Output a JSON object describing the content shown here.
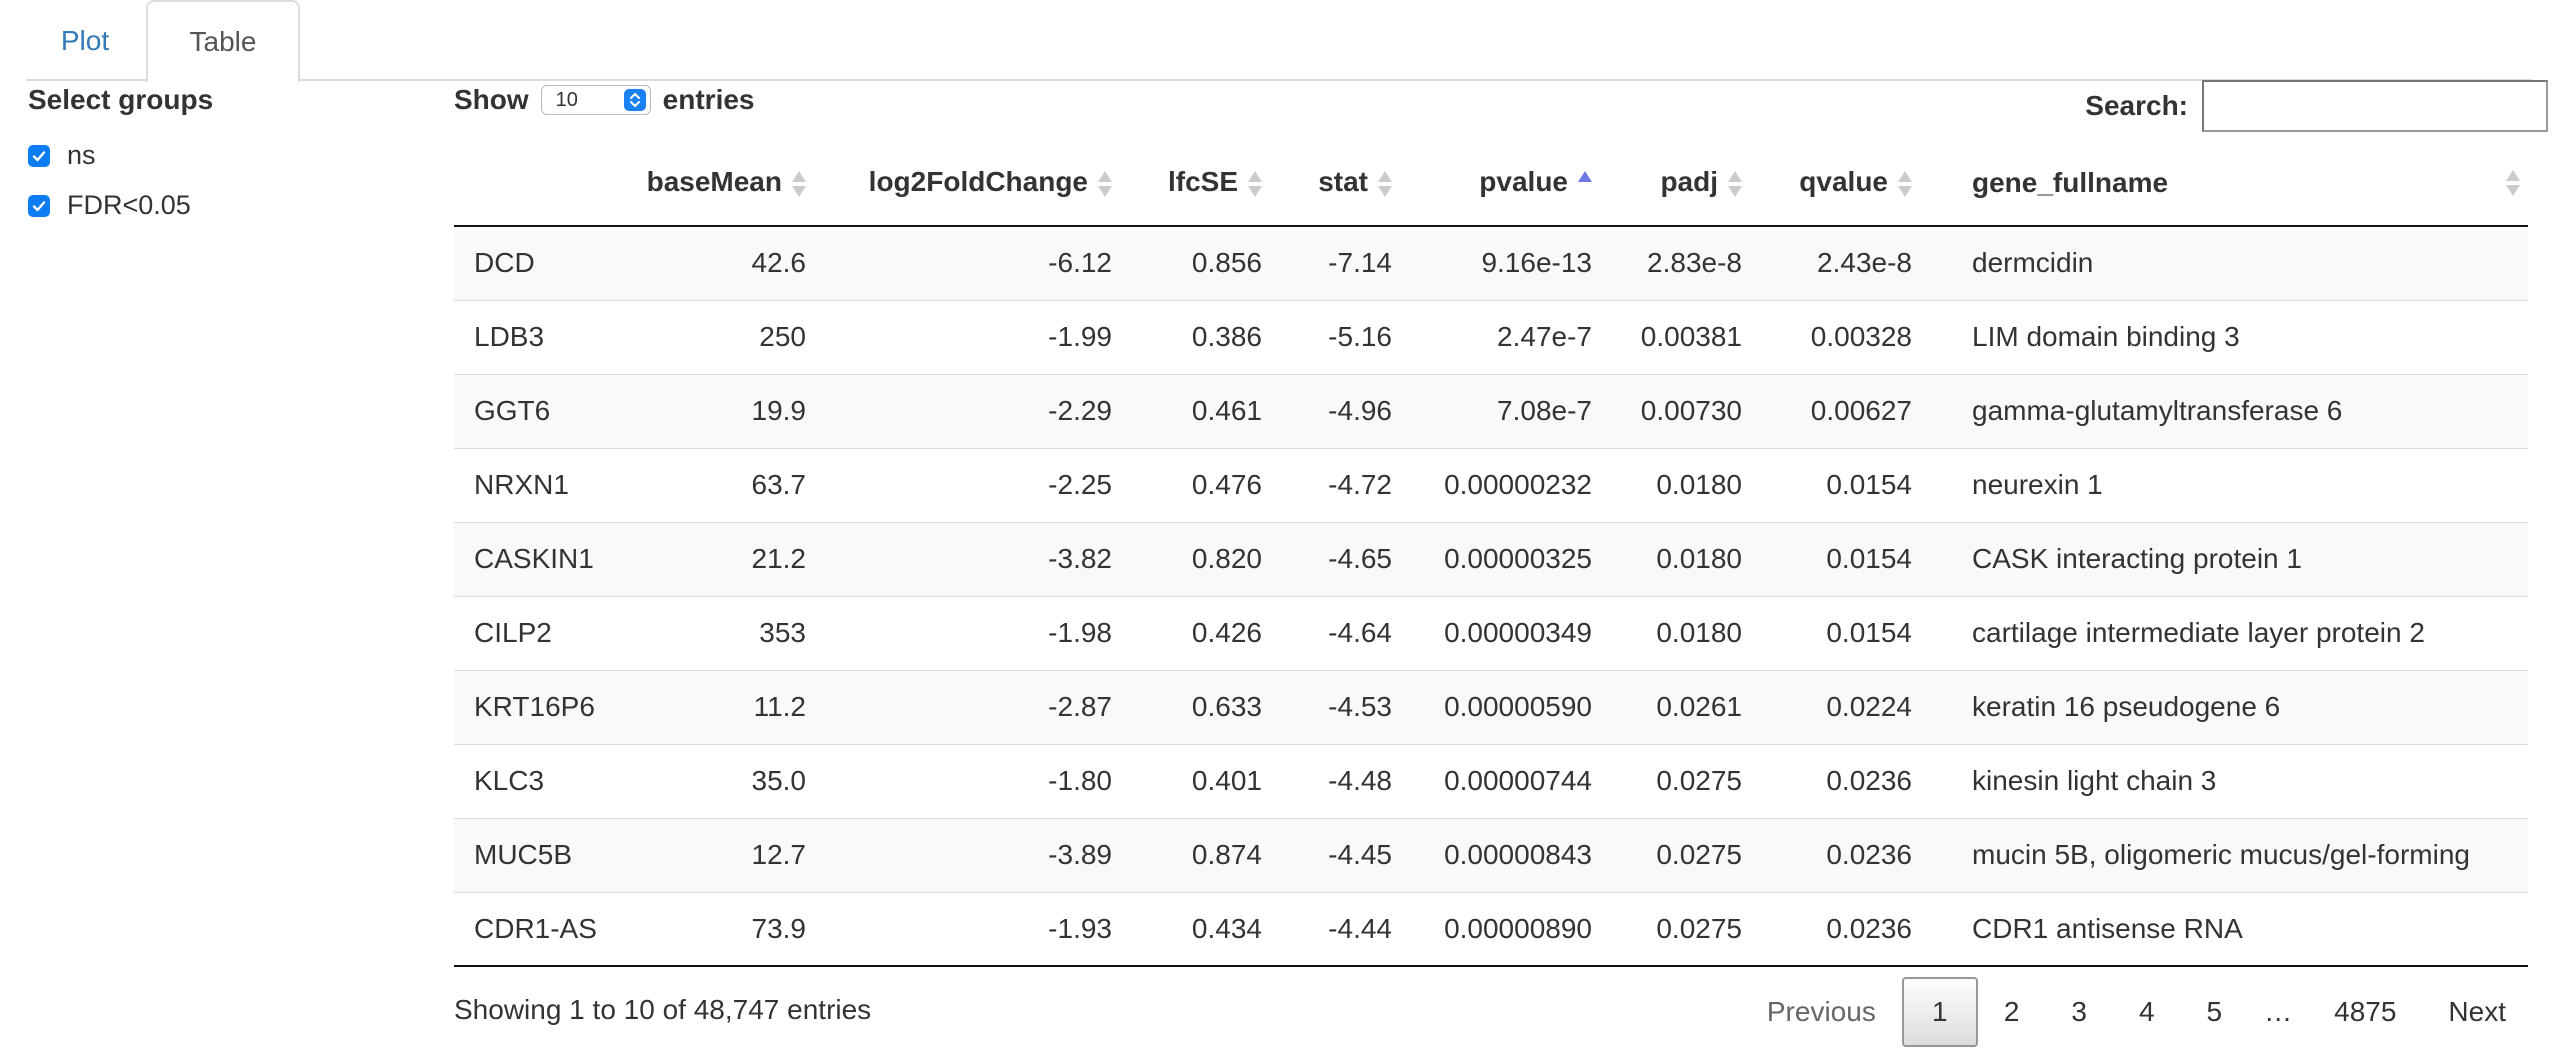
{
  "tabs": [
    "Plot",
    "Table"
  ],
  "sidebar": {
    "title": "Select groups",
    "groups": [
      {
        "label": "ns",
        "checked": true
      },
      {
        "label": "FDR<0.05",
        "checked": true
      }
    ]
  },
  "controls": {
    "show_label": "Show",
    "page_length": "10",
    "entries_label": "entries",
    "search_label": "Search:",
    "search_value": ""
  },
  "table": {
    "columns": [
      "",
      "baseMean",
      "log2FoldChange",
      "lfcSE",
      "stat",
      "pvalue",
      "padj",
      "qvalue",
      "gene_fullname"
    ],
    "sorted_column": "pvalue",
    "sort_direction": "ascending",
    "rows": [
      [
        "DCD",
        "42.6",
        "-6.12",
        "0.856",
        "-7.14",
        "9.16e-13",
        "2.83e-8",
        "2.43e-8",
        "dermcidin"
      ],
      [
        "LDB3",
        "250",
        "-1.99",
        "0.386",
        "-5.16",
        "2.47e-7",
        "0.00381",
        "0.00328",
        "LIM domain binding 3"
      ],
      [
        "GGT6",
        "19.9",
        "-2.29",
        "0.461",
        "-4.96",
        "7.08e-7",
        "0.00730",
        "0.00627",
        "gamma-glutamyltransferase 6"
      ],
      [
        "NRXN1",
        "63.7",
        "-2.25",
        "0.476",
        "-4.72",
        "0.00000232",
        "0.0180",
        "0.0154",
        "neurexin 1"
      ],
      [
        "CASKIN1",
        "21.2",
        "-3.82",
        "0.820",
        "-4.65",
        "0.00000325",
        "0.0180",
        "0.0154",
        "CASK interacting protein 1"
      ],
      [
        "CILP2",
        "353",
        "-1.98",
        "0.426",
        "-4.64",
        "0.00000349",
        "0.0180",
        "0.0154",
        "cartilage intermediate layer protein 2"
      ],
      [
        "KRT16P6",
        "11.2",
        "-2.87",
        "0.633",
        "-4.53",
        "0.00000590",
        "0.0261",
        "0.0224",
        "keratin 16 pseudogene 6"
      ],
      [
        "KLC3",
        "35.0",
        "-1.80",
        "0.401",
        "-4.48",
        "0.00000744",
        "0.0275",
        "0.0236",
        "kinesin light chain 3"
      ],
      [
        "MUC5B",
        "12.7",
        "-3.89",
        "0.874",
        "-4.45",
        "0.00000843",
        "0.0275",
        "0.0236",
        "mucin 5B, oligomeric mucus/gel-forming"
      ],
      [
        "CDR1-AS",
        "73.9",
        "-1.93",
        "0.434",
        "-4.44",
        "0.00000890",
        "0.0275",
        "0.0236",
        "CDR1 antisense RNA"
      ]
    ]
  },
  "footer": {
    "info": "Showing 1 to 10 of 48,747 entries",
    "pagination": [
      "Previous",
      "1",
      "2",
      "3",
      "4",
      "5",
      "…",
      "4875",
      "Next"
    ],
    "current_page": "1"
  },
  "colors": {
    "link": "#337ab7",
    "checkbox": "#0b7cf2",
    "sort_active": "#6f79e6"
  }
}
